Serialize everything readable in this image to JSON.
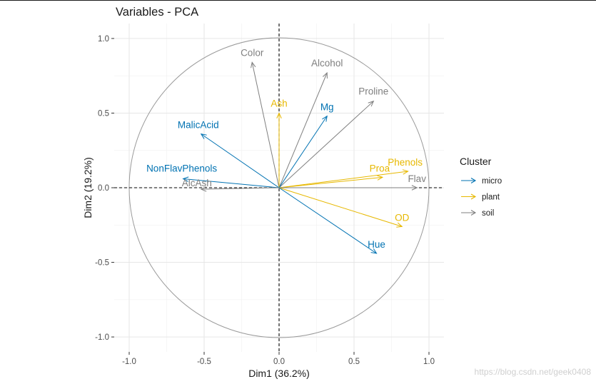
{
  "chart_data": {
    "type": "pca-variables",
    "title": "Variables - PCA",
    "xlabel": "Dim1 (36.2%)",
    "ylabel": "Dim2 (19.2%)",
    "xlim": [
      -1.1,
      1.1
    ],
    "ylim": [
      -1.1,
      1.1
    ],
    "xticks": [
      -1.0,
      -0.5,
      0.0,
      0.5,
      1.0
    ],
    "yticks": [
      -1.0,
      -0.5,
      0.0,
      0.5,
      1.0
    ],
    "xtick_labels": [
      "-1.0",
      "-0.5",
      "0.0",
      "0.5",
      "1.0"
    ],
    "ytick_labels": [
      "-1.0",
      "-0.5",
      "0.0",
      "0.5",
      "1.0"
    ],
    "grid": true,
    "legend": {
      "title": "Cluster",
      "position": "right",
      "entries": [
        {
          "name": "micro",
          "color": "#0072B2"
        },
        {
          "name": "plant",
          "color": "#E7B800"
        },
        {
          "name": "soil",
          "color": "#7f7f7f"
        }
      ]
    },
    "variables": [
      {
        "name": "Color",
        "x": -0.18,
        "y": 0.84,
        "cluster": "soil"
      },
      {
        "name": "Alcohol",
        "x": 0.32,
        "y": 0.77,
        "cluster": "soil"
      },
      {
        "name": "Proline",
        "x": 0.63,
        "y": 0.58,
        "cluster": "soil"
      },
      {
        "name": "Ash",
        "x": 0.0,
        "y": 0.5,
        "cluster": "plant"
      },
      {
        "name": "Mg",
        "x": 0.32,
        "y": 0.48,
        "cluster": "micro"
      },
      {
        "name": "MalicAcid",
        "x": -0.52,
        "y": 0.36,
        "cluster": "micro"
      },
      {
        "name": "NonFlavPhenols",
        "x": -0.64,
        "y": 0.06,
        "cluster": "micro"
      },
      {
        "name": "AlcAsh",
        "x": -0.52,
        "y": -0.01,
        "cluster": "soil"
      },
      {
        "name": "Phenols",
        "x": 0.86,
        "y": 0.11,
        "cluster": "plant"
      },
      {
        "name": "Proa",
        "x": 0.69,
        "y": 0.07,
        "cluster": "plant"
      },
      {
        "name": "Flav",
        "x": 0.92,
        "y": 0.0,
        "cluster": "soil"
      },
      {
        "name": "OD",
        "x": 0.82,
        "y": -0.26,
        "cluster": "plant"
      },
      {
        "name": "Hue",
        "x": 0.65,
        "y": -0.44,
        "cluster": "micro"
      }
    ]
  },
  "watermark": "https://blog.csdn.net/geek0408"
}
